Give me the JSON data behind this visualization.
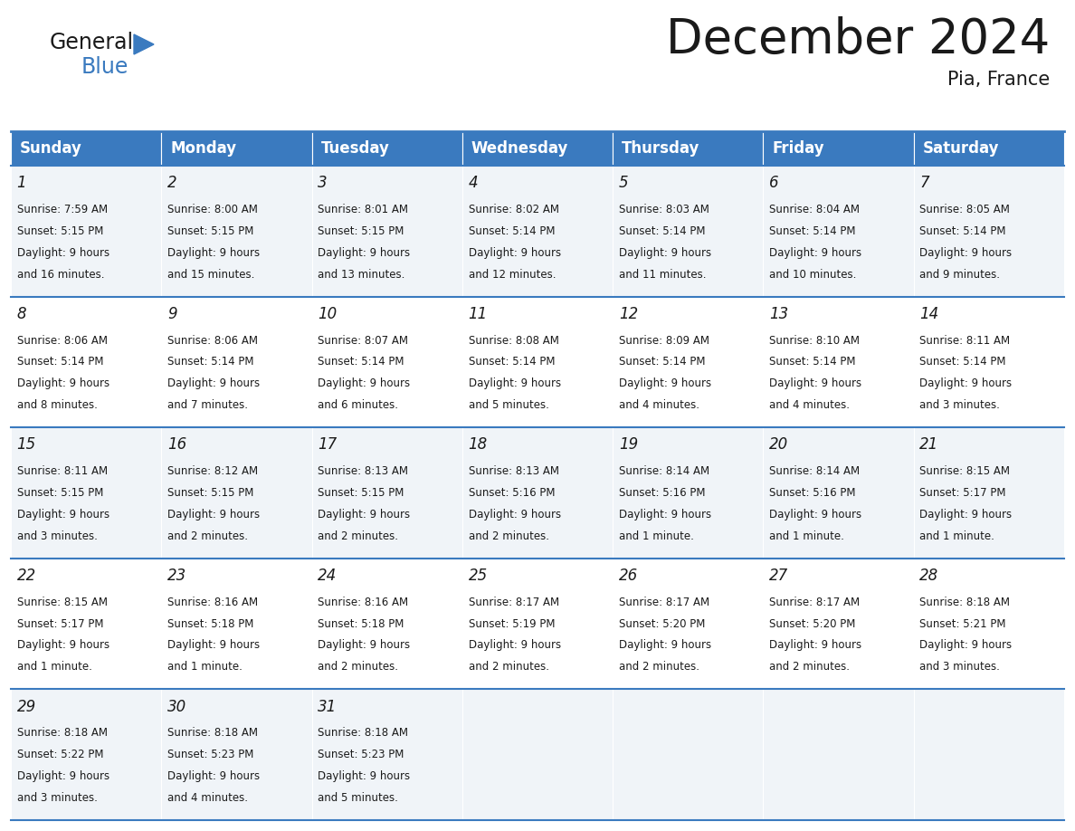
{
  "title": "December 2024",
  "subtitle": "Pia, France",
  "header_color": "#3a7abf",
  "header_text_color": "#ffffff",
  "cell_bg_even": "#f0f4f8",
  "cell_bg_odd": "#ffffff",
  "separator_color": "#3a7abf",
  "text_color": "#1a1a1a",
  "day_headers": [
    "Sunday",
    "Monday",
    "Tuesday",
    "Wednesday",
    "Thursday",
    "Friday",
    "Saturday"
  ],
  "title_fontsize": 38,
  "subtitle_fontsize": 15,
  "header_fontsize": 12,
  "day_num_fontsize": 12,
  "cell_fontsize": 8.5,
  "logo_fontsize": 17,
  "calendar_data": [
    [
      {
        "day": 1,
        "sunrise": "7:59 AM",
        "sunset": "5:15 PM",
        "daylight": "9 hours and 16 minutes."
      },
      {
        "day": 2,
        "sunrise": "8:00 AM",
        "sunset": "5:15 PM",
        "daylight": "9 hours and 15 minutes."
      },
      {
        "day": 3,
        "sunrise": "8:01 AM",
        "sunset": "5:15 PM",
        "daylight": "9 hours and 13 minutes."
      },
      {
        "day": 4,
        "sunrise": "8:02 AM",
        "sunset": "5:14 PM",
        "daylight": "9 hours and 12 minutes."
      },
      {
        "day": 5,
        "sunrise": "8:03 AM",
        "sunset": "5:14 PM",
        "daylight": "9 hours and 11 minutes."
      },
      {
        "day": 6,
        "sunrise": "8:04 AM",
        "sunset": "5:14 PM",
        "daylight": "9 hours and 10 minutes."
      },
      {
        "day": 7,
        "sunrise": "8:05 AM",
        "sunset": "5:14 PM",
        "daylight": "9 hours and 9 minutes."
      }
    ],
    [
      {
        "day": 8,
        "sunrise": "8:06 AM",
        "sunset": "5:14 PM",
        "daylight": "9 hours and 8 minutes."
      },
      {
        "day": 9,
        "sunrise": "8:06 AM",
        "sunset": "5:14 PM",
        "daylight": "9 hours and 7 minutes."
      },
      {
        "day": 10,
        "sunrise": "8:07 AM",
        "sunset": "5:14 PM",
        "daylight": "9 hours and 6 minutes."
      },
      {
        "day": 11,
        "sunrise": "8:08 AM",
        "sunset": "5:14 PM",
        "daylight": "9 hours and 5 minutes."
      },
      {
        "day": 12,
        "sunrise": "8:09 AM",
        "sunset": "5:14 PM",
        "daylight": "9 hours and 4 minutes."
      },
      {
        "day": 13,
        "sunrise": "8:10 AM",
        "sunset": "5:14 PM",
        "daylight": "9 hours and 4 minutes."
      },
      {
        "day": 14,
        "sunrise": "8:11 AM",
        "sunset": "5:14 PM",
        "daylight": "9 hours and 3 minutes."
      }
    ],
    [
      {
        "day": 15,
        "sunrise": "8:11 AM",
        "sunset": "5:15 PM",
        "daylight": "9 hours and 3 minutes."
      },
      {
        "day": 16,
        "sunrise": "8:12 AM",
        "sunset": "5:15 PM",
        "daylight": "9 hours and 2 minutes."
      },
      {
        "day": 17,
        "sunrise": "8:13 AM",
        "sunset": "5:15 PM",
        "daylight": "9 hours and 2 minutes."
      },
      {
        "day": 18,
        "sunrise": "8:13 AM",
        "sunset": "5:16 PM",
        "daylight": "9 hours and 2 minutes."
      },
      {
        "day": 19,
        "sunrise": "8:14 AM",
        "sunset": "5:16 PM",
        "daylight": "9 hours and 1 minute."
      },
      {
        "day": 20,
        "sunrise": "8:14 AM",
        "sunset": "5:16 PM",
        "daylight": "9 hours and 1 minute."
      },
      {
        "day": 21,
        "sunrise": "8:15 AM",
        "sunset": "5:17 PM",
        "daylight": "9 hours and 1 minute."
      }
    ],
    [
      {
        "day": 22,
        "sunrise": "8:15 AM",
        "sunset": "5:17 PM",
        "daylight": "9 hours and 1 minute."
      },
      {
        "day": 23,
        "sunrise": "8:16 AM",
        "sunset": "5:18 PM",
        "daylight": "9 hours and 1 minute."
      },
      {
        "day": 24,
        "sunrise": "8:16 AM",
        "sunset": "5:18 PM",
        "daylight": "9 hours and 2 minutes."
      },
      {
        "day": 25,
        "sunrise": "8:17 AM",
        "sunset": "5:19 PM",
        "daylight": "9 hours and 2 minutes."
      },
      {
        "day": 26,
        "sunrise": "8:17 AM",
        "sunset": "5:20 PM",
        "daylight": "9 hours and 2 minutes."
      },
      {
        "day": 27,
        "sunrise": "8:17 AM",
        "sunset": "5:20 PM",
        "daylight": "9 hours and 2 minutes."
      },
      {
        "day": 28,
        "sunrise": "8:18 AM",
        "sunset": "5:21 PM",
        "daylight": "9 hours and 3 minutes."
      }
    ],
    [
      {
        "day": 29,
        "sunrise": "8:18 AM",
        "sunset": "5:22 PM",
        "daylight": "9 hours and 3 minutes."
      },
      {
        "day": 30,
        "sunrise": "8:18 AM",
        "sunset": "5:23 PM",
        "daylight": "9 hours and 4 minutes."
      },
      {
        "day": 31,
        "sunrise": "8:18 AM",
        "sunset": "5:23 PM",
        "daylight": "9 hours and 5 minutes."
      },
      null,
      null,
      null,
      null
    ]
  ]
}
